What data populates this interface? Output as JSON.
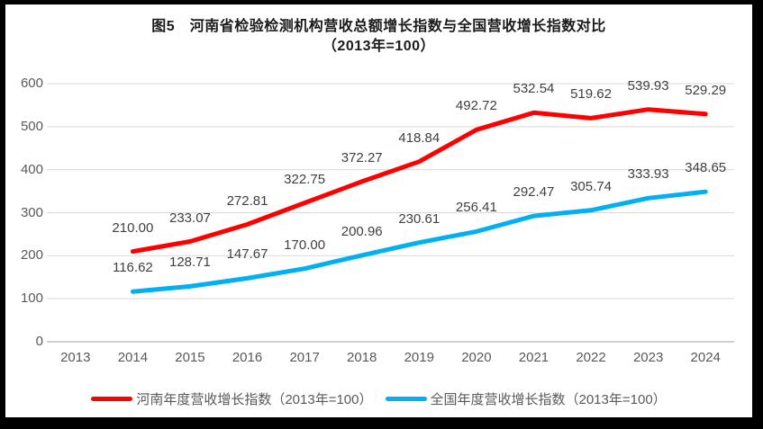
{
  "title": {
    "line1": "图5　河南省检验检测机构营收总额增长指数与全国营收增长指数对比",
    "line2": "（2013年=100）"
  },
  "chart_data": {
    "type": "line",
    "categories": [
      "2013",
      "2014",
      "2015",
      "2016",
      "2017",
      "2018",
      "2019",
      "2020",
      "2021",
      "2022",
      "2023",
      "2024"
    ],
    "series": [
      {
        "name": "河南年度营收增长指数（2013年=100）",
        "color": "#FF0000",
        "values": [
          null,
          210.0,
          233.07,
          272.81,
          322.75,
          372.27,
          418.84,
          492.72,
          532.54,
          519.62,
          539.93,
          529.29
        ]
      },
      {
        "name": "全国年度营收增长指数（2013年=100）",
        "color": "#00B0F0",
        "values": [
          null,
          116.62,
          128.71,
          147.67,
          170.0,
          200.96,
          230.61,
          256.41,
          292.47,
          305.74,
          333.93,
          348.65
        ]
      }
    ],
    "ylim": [
      0,
      600
    ],
    "ytick_step": 100,
    "yticks": [
      0,
      100,
      200,
      300,
      400,
      500,
      600
    ],
    "grid": true,
    "legend_position": "bottom",
    "data_labels": "above",
    "label_decimals": 2
  },
  "styles": {
    "outer_border_color": "#000000",
    "background": "#FFFFFF",
    "grid_color": "#D9D9D9",
    "axis_color": "#BFBFBF",
    "tick_label_color": "#595959",
    "data_label_color": "#404040",
    "title_color": "#1A1A1A"
  }
}
